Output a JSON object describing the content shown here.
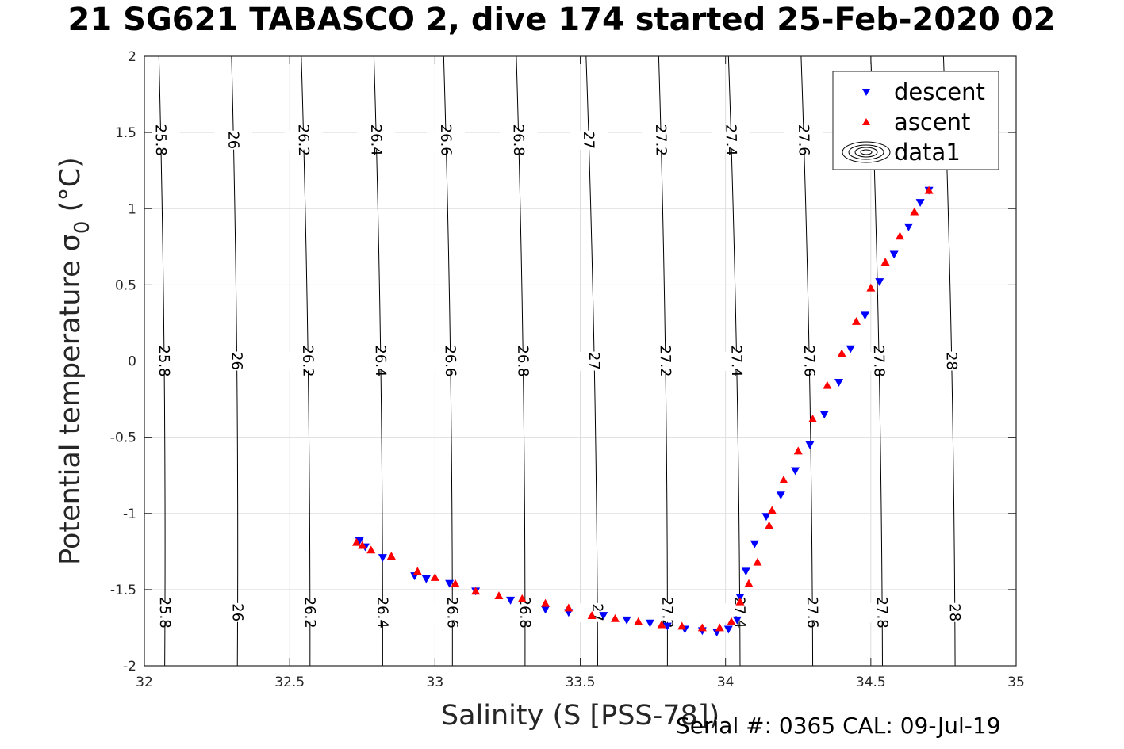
{
  "figure_title": "21 SG621 TABASCO 2, dive 174 started 25-Feb-2020 02",
  "footer": "Serial #: 0365  CAL: 09-Jul-19",
  "chart_data": {
    "type": "scatter",
    "title": "21 SG621 TABASCO 2, dive 174 started 25-Feb-2020 02",
    "xlabel": "Salinity (S [PSS-78])",
    "ylabel_main": "Potential temperature σ",
    "ylabel_sub": "0",
    "ylabel_unit": " (°C)",
    "xlim": [
      32,
      35
    ],
    "ylim": [
      -2,
      2
    ],
    "xticks": [
      "32",
      "32.5",
      "33",
      "33.5",
      "34",
      "34.5",
      "35"
    ],
    "yticks": [
      "-2",
      "-1.5",
      "-1",
      "-0.5",
      "0",
      "0.5",
      "1",
      "1.5",
      "2"
    ],
    "grid": true,
    "legend": {
      "placement": "top-right",
      "entries": [
        {
          "label": "descent",
          "marker": "triangle-down",
          "color": "#0000ff"
        },
        {
          "label": "ascent",
          "marker": "triangle-up",
          "color": "#ff0000"
        },
        {
          "label": "data1",
          "marker": "contour",
          "color": "#000000"
        }
      ]
    },
    "contours": [
      {
        "label": "25.8",
        "bottom": [
          32.07,
          -2
        ],
        "top": [
          32.05,
          2
        ]
      },
      {
        "label": "26",
        "bottom": [
          32.32,
          -2
        ],
        "top": [
          32.3,
          2
        ]
      },
      {
        "label": "26.2",
        "bottom": [
          32.57,
          -2
        ],
        "top": [
          32.54,
          2
        ]
      },
      {
        "label": "26.4",
        "bottom": [
          32.82,
          -2
        ],
        "top": [
          32.79,
          2
        ]
      },
      {
        "label": "26.6",
        "bottom": [
          33.06,
          -2
        ],
        "top": [
          33.03,
          2
        ]
      },
      {
        "label": "26.8",
        "bottom": [
          33.31,
          -2
        ],
        "top": [
          33.28,
          2
        ]
      },
      {
        "label": "27",
        "bottom": [
          33.56,
          -2
        ],
        "top": [
          33.52,
          2
        ]
      },
      {
        "label": "27.2",
        "bottom": [
          33.8,
          -2
        ],
        "top": [
          33.77,
          2
        ]
      },
      {
        "label": "27.4",
        "bottom": [
          34.05,
          -2
        ],
        "top": [
          34.01,
          2
        ]
      },
      {
        "label": "27.6",
        "bottom": [
          34.3,
          -2
        ],
        "top": [
          34.26,
          2
        ]
      },
      {
        "label": "27.8",
        "bottom": [
          34.54,
          -2
        ],
        "top": [
          34.5,
          2
        ]
      },
      {
        "label": "28",
        "bottom": [
          34.79,
          -2
        ],
        "top": [
          34.75,
          2
        ]
      }
    ],
    "contour_label_rows": [
      1.45,
      0,
      -1.65
    ],
    "series": [
      {
        "name": "descent",
        "color": "#0000ff",
        "marker": "triangle-down",
        "x": [
          32.74,
          32.76,
          32.82,
          32.93,
          32.97,
          33.05,
          33.14,
          33.26,
          33.38,
          33.46,
          33.58,
          33.66,
          33.74,
          33.8,
          33.86,
          33.92,
          33.97,
          34.01,
          34.04,
          34.05,
          34.07,
          34.1,
          34.14,
          34.19,
          34.24,
          34.29,
          34.34,
          34.39,
          34.43,
          34.48,
          34.53,
          34.58,
          34.63,
          34.67,
          34.7
        ],
        "y": [
          -1.18,
          -1.22,
          -1.29,
          -1.41,
          -1.43,
          -1.46,
          -1.51,
          -1.57,
          -1.63,
          -1.65,
          -1.67,
          -1.7,
          -1.72,
          -1.74,
          -1.76,
          -1.77,
          -1.78,
          -1.76,
          -1.7,
          -1.55,
          -1.38,
          -1.2,
          -1.02,
          -0.88,
          -0.72,
          -0.55,
          -0.35,
          -0.14,
          0.08,
          0.3,
          0.52,
          0.7,
          0.88,
          1.04,
          1.12
        ]
      },
      {
        "name": "ascent",
        "color": "#ff0000",
        "marker": "triangle-up",
        "x": [
          32.73,
          32.75,
          32.78,
          32.85,
          32.94,
          33.0,
          33.07,
          33.14,
          33.22,
          33.3,
          33.38,
          33.46,
          33.54,
          33.62,
          33.7,
          33.78,
          33.85,
          33.92,
          33.98,
          34.02,
          34.05,
          34.08,
          34.11,
          34.15,
          34.16,
          34.2,
          34.25,
          34.3,
          34.35,
          34.4,
          34.45,
          34.5,
          34.55,
          34.6,
          34.65,
          34.7
        ],
        "y": [
          -1.19,
          -1.21,
          -1.24,
          -1.28,
          -1.38,
          -1.42,
          -1.46,
          -1.51,
          -1.54,
          -1.56,
          -1.59,
          -1.62,
          -1.67,
          -1.69,
          -1.71,
          -1.73,
          -1.74,
          -1.75,
          -1.75,
          -1.71,
          -1.58,
          -1.46,
          -1.32,
          -1.08,
          -0.98,
          -0.78,
          -0.59,
          -0.38,
          -0.16,
          0.05,
          0.26,
          0.48,
          0.65,
          0.82,
          0.98,
          1.12
        ]
      }
    ]
  }
}
